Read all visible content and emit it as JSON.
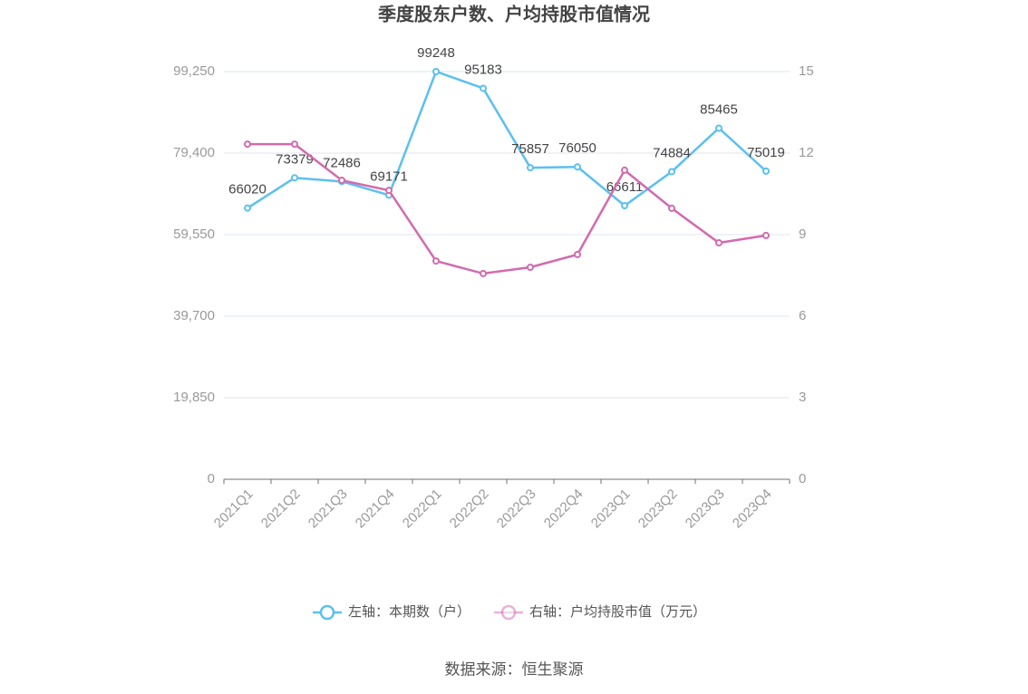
{
  "chart_data": {
    "type": "line",
    "title": "季度股东户数、户均持股市值情况",
    "categories": [
      "2021Q1",
      "2021Q2",
      "2021Q3",
      "2021Q4",
      "2022Q1",
      "2022Q2",
      "2022Q3",
      "2022Q4",
      "2023Q1",
      "2023Q2",
      "2023Q3",
      "2023Q4"
    ],
    "series": [
      {
        "name": "左轴：本期数（户）",
        "color": "#5bc0f0",
        "values": [
          66020,
          73379,
          72486,
          69171,
          99248,
          95183,
          75857,
          76050,
          66611,
          74884,
          85465,
          75019
        ]
      },
      {
        "name": "右轴：户均持股市值（万元）",
        "color": "#d36aae",
        "axis": "y2",
        "values": [
          12.33,
          12.33,
          11.0,
          10.63,
          8.03,
          7.57,
          7.8,
          8.27,
          11.37,
          9.97,
          8.7,
          8.97
        ]
      }
    ],
    "ylim": [
      0,
      99250
    ],
    "yticks": [
      0,
      {
        "value": 19850,
        "label": "19,850"
      },
      {
        "value": 39700,
        "label": "39,700"
      },
      {
        "value": 59550,
        "label": "59,550"
      },
      {
        "value": 79400,
        "label": "79,400"
      },
      {
        "value": 99250,
        "label": "99,250"
      }
    ],
    "y2lim": [
      0,
      15
    ],
    "y2ticks": [
      0,
      3,
      6,
      9,
      12,
      15
    ],
    "grid": true,
    "legend": "bottom",
    "source": "数据来源：恒生聚源"
  }
}
